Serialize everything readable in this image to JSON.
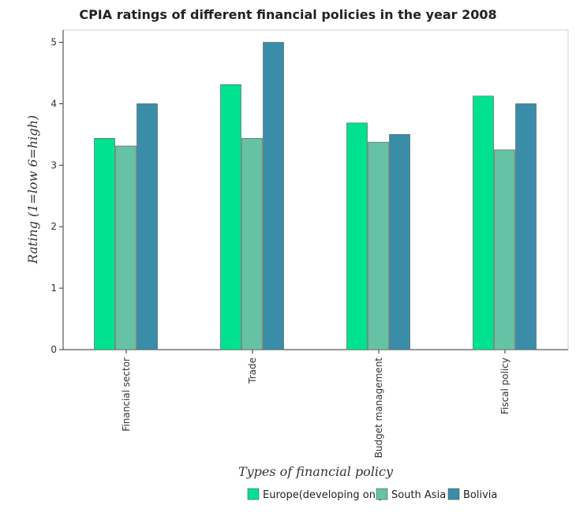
{
  "chart_data": {
    "type": "bar",
    "title": "CPIA ratings of different financial policies in the year 2008",
    "xlabel": "Types of financial policy",
    "ylabel": "Rating (1=low 6=high)",
    "ylim": [
      0,
      5.2
    ],
    "yticks": [
      0,
      1,
      2,
      3,
      4,
      5
    ],
    "categories": [
      "Financial sector",
      "Trade",
      "Budget management",
      "Fiscal policy"
    ],
    "series": [
      {
        "name": "Europe(developing only)",
        "color": "#00e28f",
        "values": [
          3.4375,
          4.3125,
          3.6875,
          4.125
        ]
      },
      {
        "name": "South Asia",
        "color": "#66c2a4",
        "values": [
          3.3125,
          3.4375,
          3.375,
          3.25
        ]
      },
      {
        "name": "Bolivia",
        "color": "#3a8da8",
        "values": [
          4.0,
          5.0,
          3.5,
          4.0
        ]
      }
    ],
    "grid": false,
    "legend_position": "bottom-right"
  }
}
